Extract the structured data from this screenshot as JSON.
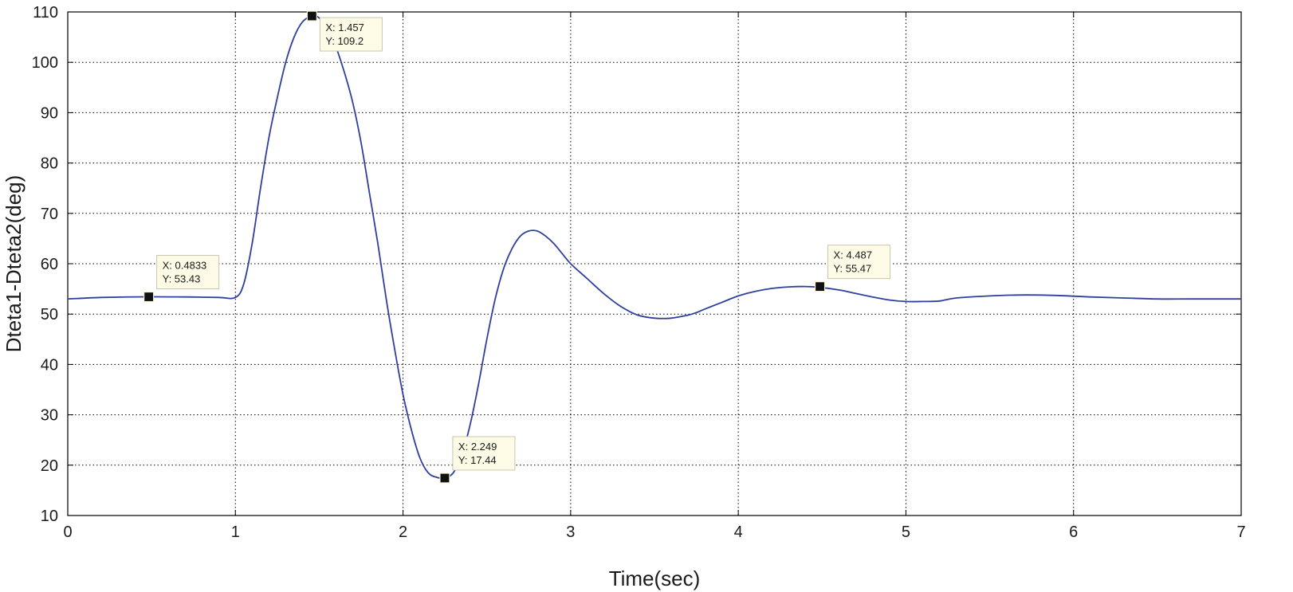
{
  "chart_data": {
    "type": "line",
    "title": "",
    "xlabel": "Time(sec)",
    "ylabel": "Dteta1-Dteta2(deg)",
    "xlim": [
      0,
      7
    ],
    "ylim": [
      10,
      110
    ],
    "xticks": [
      0,
      1,
      2,
      3,
      4,
      5,
      6,
      7
    ],
    "yticks": [
      10,
      20,
      30,
      40,
      50,
      60,
      70,
      80,
      90,
      100,
      110
    ],
    "grid": true,
    "line_color": "#2e3f9e",
    "series": [
      {
        "x": [
          0,
          0.2,
          0.48,
          0.7,
          0.9,
          1.0,
          1.05,
          1.1,
          1.15,
          1.2,
          1.25,
          1.3,
          1.35,
          1.4,
          1.457,
          1.5,
          1.55,
          1.6,
          1.65,
          1.7,
          1.75,
          1.8,
          1.85,
          1.9,
          1.95,
          2.0,
          2.05,
          2.1,
          2.15,
          2.2,
          2.249,
          2.3,
          2.35,
          2.4,
          2.45,
          2.5,
          2.55,
          2.6,
          2.65,
          2.7,
          2.75,
          2.8,
          2.85,
          2.9,
          2.95,
          3.0,
          3.1,
          3.2,
          3.3,
          3.4,
          3.5,
          3.6,
          3.7,
          3.75,
          3.8,
          3.9,
          4.0,
          4.1,
          4.2,
          4.3,
          4.4,
          4.487,
          4.6,
          4.7,
          4.8,
          4.9,
          5.0,
          5.1,
          5.2,
          5.3,
          5.5,
          5.7,
          5.9,
          6.1,
          6.3,
          6.5,
          6.7,
          7.0
        ],
        "y": [
          53.0,
          53.3,
          53.43,
          53.4,
          53.3,
          53.3,
          56,
          64,
          75,
          85,
          93,
          100,
          105,
          108,
          109.2,
          108.8,
          106.5,
          103,
          98,
          92,
          84,
          74,
          64,
          53,
          43,
          34,
          27,
          21.5,
          18.5,
          17.6,
          17.44,
          18.5,
          22,
          28,
          36,
          45,
          53,
          59,
          63,
          65.5,
          66.5,
          66.5,
          65.5,
          64,
          62,
          60,
          57,
          54,
          51.5,
          49.8,
          49.2,
          49.2,
          49.8,
          50.3,
          51,
          52.3,
          53.6,
          54.5,
          55.1,
          55.4,
          55.47,
          55.3,
          54.8,
          54.1,
          53.4,
          52.8,
          52.5,
          52.5,
          52.6,
          53.2,
          53.6,
          53.8,
          53.7,
          53.4,
          53.2,
          53.0,
          53.0,
          53.0
        ]
      }
    ],
    "datatips": [
      {
        "x": 0.4833,
        "y": 53.43,
        "label_x": "X: 0.4833",
        "label_y": "Y: 53.43"
      },
      {
        "x": 1.457,
        "y": 109.2,
        "label_x": "X: 1.457",
        "label_y": "Y: 109.2"
      },
      {
        "x": 2.249,
        "y": 17.44,
        "label_x": "X: 2.249",
        "label_y": "Y: 17.44"
      },
      {
        "x": 4.487,
        "y": 55.47,
        "label_x": "X: 4.487",
        "label_y": "Y: 55.47"
      }
    ]
  }
}
